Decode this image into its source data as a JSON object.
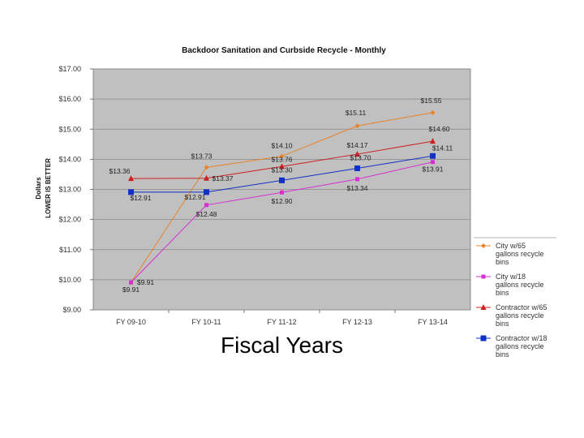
{
  "chart_data": {
    "type": "line",
    "title": "Backdoor Sanitation and Curbside Recycle - Monthly",
    "ylabel_line1": "Dollars",
    "ylabel_line2": "LOWER IS BETTER",
    "xlabel": "Fiscal Years",
    "categories": [
      "FY 09-10",
      "FY 10-11",
      "FY 11-12",
      "FY 12-13",
      "FY 13-14"
    ],
    "ylim": [
      9,
      17
    ],
    "yticks": [
      "$9.00",
      "$10.00",
      "$11.00",
      "$12.00",
      "$13.00",
      "$14.00",
      "$15.00",
      "$16.00",
      "$17.00"
    ],
    "series": [
      {
        "name": "City w/65 gallons recycle bins",
        "color": "#e8822c",
        "marker": "diamond",
        "values": [
          9.91,
          13.73,
          14.1,
          15.11,
          15.55
        ],
        "labels": [
          "$9.91",
          "$13.73",
          "$14.10",
          "$15.11",
          "$15.55"
        ],
        "legend_lines": [
          "City w/65",
          "gallons recycle",
          "bins"
        ]
      },
      {
        "name": "City w/18 gallons recycle bins",
        "color": "#d62fd2",
        "marker": "square-small",
        "values": [
          9.91,
          12.48,
          12.9,
          13.34,
          13.91
        ],
        "labels": [
          "$9.91",
          "$12.48",
          "$12.90",
          "$13.34",
          "$13.91"
        ],
        "legend_lines": [
          "City w/18",
          "gallons recycle",
          "bins"
        ]
      },
      {
        "name": "Contractor w/65 gallons recycle bins",
        "color": "#cc2020",
        "marker": "triangle",
        "values": [
          13.36,
          13.37,
          13.76,
          14.17,
          14.6
        ],
        "labels": [
          "$13.36",
          "$13.37",
          "$13.76",
          "$14.17",
          "$14.60"
        ],
        "legend_lines": [
          "Contractor w/65",
          "gallons recycle",
          "bins"
        ]
      },
      {
        "name": "Contractor w/18 gallons recycle bins",
        "color": "#1030c8",
        "marker": "square",
        "values": [
          12.91,
          12.91,
          13.3,
          13.7,
          14.11
        ],
        "labels": [
          "$12.91",
          "$12.91",
          "$13.30",
          "$13.70",
          "$14.11"
        ],
        "legend_lines": [
          "Contractor w/18",
          "gallons recycle",
          "bins"
        ]
      }
    ],
    "legend_position": "right",
    "grid": true
  }
}
